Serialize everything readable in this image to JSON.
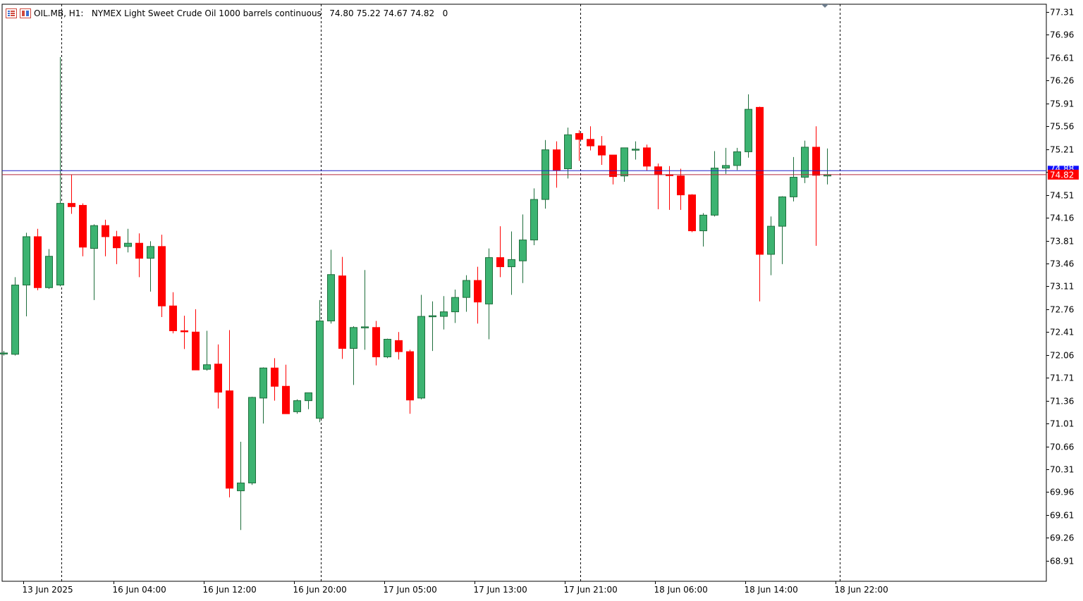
{
  "header": {
    "symbol": "OIL.MB",
    "timeframe": "H1:",
    "description": "NYMEX Light Sweet Crude Oil 1000 barrels continuous",
    "ohlc": "74.80 75.22 74.67 74.82",
    "volume": "0"
  },
  "colors": {
    "bull": "#3cb371",
    "bear": "#ff0000",
    "outline": "#1e6e3c",
    "bid_line": "#1e1ec8",
    "ask_line": "#b4283c",
    "price_label_bg": "#ff0000",
    "ask_label_bg": "#1010ff"
  },
  "price_label": "74.82",
  "ask_label": "74.88",
  "chart_data": {
    "type": "candlestick",
    "title": "",
    "ylim": [
      68.6,
      77.4
    ],
    "y_ticks": [
      "77.31",
      "76.96",
      "76.61",
      "76.26",
      "75.91",
      "75.56",
      "75.21",
      "74.86",
      "74.51",
      "74.16",
      "73.81",
      "73.46",
      "73.11",
      "72.76",
      "72.41",
      "72.06",
      "71.71",
      "71.36",
      "71.01",
      "70.66",
      "70.31",
      "69.96",
      "69.61",
      "69.26",
      "68.91"
    ],
    "x_labels": [
      {
        "index": 2,
        "label": "13 Jun 2025"
      },
      {
        "index": 10,
        "label": "16 Jun 04:00"
      },
      {
        "index": 18,
        "label": "16 Jun 12:00"
      },
      {
        "index": 26,
        "label": "16 Jun 20:00"
      },
      {
        "index": 34,
        "label": "17 Jun 05:00"
      },
      {
        "index": 42,
        "label": "17 Jun 13:00"
      },
      {
        "index": 50,
        "label": "17 Jun 21:00"
      },
      {
        "index": 58,
        "label": "18 Jun 06:00"
      },
      {
        "index": 66,
        "label": "18 Jun 14:00"
      },
      {
        "index": 74,
        "label": "18 Jun 22:00"
      }
    ],
    "day_separators": [
      5,
      28,
      51,
      74
    ],
    "bid": 74.82,
    "ask": 74.88,
    "candles": [
      {
        "o": 72.09,
        "h": 72.12,
        "l": 72.05,
        "c": 72.09
      },
      {
        "o": 72.07,
        "h": 73.25,
        "l": 72.05,
        "c": 73.13
      },
      {
        "o": 73.13,
        "h": 73.93,
        "l": 72.65,
        "c": 73.87
      },
      {
        "o": 73.87,
        "h": 73.99,
        "l": 73.05,
        "c": 73.09
      },
      {
        "o": 73.09,
        "h": 73.68,
        "l": 73.07,
        "c": 73.57
      },
      {
        "o": 73.13,
        "h": 76.62,
        "l": 73.11,
        "c": 74.38
      },
      {
        "o": 74.38,
        "h": 74.82,
        "l": 74.22,
        "c": 74.33
      },
      {
        "o": 74.35,
        "h": 74.38,
        "l": 73.57,
        "c": 73.71
      },
      {
        "o": 73.69,
        "h": 74.06,
        "l": 72.9,
        "c": 74.04
      },
      {
        "o": 74.04,
        "h": 74.13,
        "l": 73.57,
        "c": 73.87
      },
      {
        "o": 73.87,
        "h": 73.96,
        "l": 73.45,
        "c": 73.7
      },
      {
        "o": 73.72,
        "h": 73.99,
        "l": 73.63,
        "c": 73.77
      },
      {
        "o": 73.77,
        "h": 73.92,
        "l": 73.25,
        "c": 73.54
      },
      {
        "o": 73.54,
        "h": 73.8,
        "l": 73.03,
        "c": 73.72
      },
      {
        "o": 73.72,
        "h": 73.9,
        "l": 72.64,
        "c": 72.81
      },
      {
        "o": 72.81,
        "h": 73.02,
        "l": 72.39,
        "c": 72.43
      },
      {
        "o": 72.43,
        "h": 72.66,
        "l": 72.15,
        "c": 72.42
      },
      {
        "o": 72.41,
        "h": 72.76,
        "l": 71.84,
        "c": 71.83
      },
      {
        "o": 71.84,
        "h": 72.43,
        "l": 71.82,
        "c": 71.91
      },
      {
        "o": 71.92,
        "h": 72.22,
        "l": 71.24,
        "c": 71.49
      },
      {
        "o": 71.51,
        "h": 72.44,
        "l": 69.88,
        "c": 70.02
      },
      {
        "o": 69.98,
        "h": 70.73,
        "l": 69.38,
        "c": 70.1
      },
      {
        "o": 70.1,
        "h": 71.42,
        "l": 70.07,
        "c": 71.41
      },
      {
        "o": 71.4,
        "h": 71.87,
        "l": 71.01,
        "c": 71.86
      },
      {
        "o": 71.86,
        "h": 72.01,
        "l": 71.36,
        "c": 71.58
      },
      {
        "o": 71.58,
        "h": 71.91,
        "l": 71.16,
        "c": 71.16
      },
      {
        "o": 71.19,
        "h": 71.38,
        "l": 71.16,
        "c": 71.36
      },
      {
        "o": 71.36,
        "h": 71.48,
        "l": 71.23,
        "c": 71.48
      },
      {
        "o": 71.09,
        "h": 72.9,
        "l": 71.03,
        "c": 72.58
      },
      {
        "o": 72.58,
        "h": 73.67,
        "l": 72.54,
        "c": 73.29
      },
      {
        "o": 73.27,
        "h": 73.56,
        "l": 72.0,
        "c": 72.16
      },
      {
        "o": 72.16,
        "h": 72.5,
        "l": 71.6,
        "c": 72.48
      },
      {
        "o": 72.48,
        "h": 73.36,
        "l": 72.14,
        "c": 72.49
      },
      {
        "o": 72.48,
        "h": 72.58,
        "l": 71.9,
        "c": 72.03
      },
      {
        "o": 72.03,
        "h": 72.31,
        "l": 72.01,
        "c": 72.3
      },
      {
        "o": 72.28,
        "h": 72.41,
        "l": 71.99,
        "c": 72.11
      },
      {
        "o": 72.11,
        "h": 72.14,
        "l": 71.16,
        "c": 71.37
      },
      {
        "o": 71.4,
        "h": 72.98,
        "l": 71.38,
        "c": 72.65
      },
      {
        "o": 72.66,
        "h": 72.88,
        "l": 72.12,
        "c": 72.66
      },
      {
        "o": 72.65,
        "h": 72.96,
        "l": 72.45,
        "c": 72.72
      },
      {
        "o": 72.72,
        "h": 73.06,
        "l": 72.55,
        "c": 72.94
      },
      {
        "o": 72.94,
        "h": 73.28,
        "l": 72.72,
        "c": 73.2
      },
      {
        "o": 73.2,
        "h": 73.41,
        "l": 72.54,
        "c": 72.87
      },
      {
        "o": 72.84,
        "h": 73.69,
        "l": 72.3,
        "c": 73.55
      },
      {
        "o": 73.55,
        "h": 74.03,
        "l": 73.25,
        "c": 73.41
      },
      {
        "o": 73.41,
        "h": 73.95,
        "l": 72.98,
        "c": 73.52
      },
      {
        "o": 73.5,
        "h": 74.21,
        "l": 73.16,
        "c": 73.82
      },
      {
        "o": 73.82,
        "h": 74.61,
        "l": 73.74,
        "c": 74.44
      },
      {
        "o": 74.44,
        "h": 75.35,
        "l": 74.3,
        "c": 75.2
      },
      {
        "o": 75.2,
        "h": 75.33,
        "l": 74.62,
        "c": 74.89
      },
      {
        "o": 74.91,
        "h": 75.54,
        "l": 74.76,
        "c": 75.43
      },
      {
        "o": 75.45,
        "h": 75.5,
        "l": 75.03,
        "c": 75.36
      },
      {
        "o": 75.36,
        "h": 75.56,
        "l": 75.19,
        "c": 75.26
      },
      {
        "o": 75.26,
        "h": 75.41,
        "l": 74.97,
        "c": 75.12
      },
      {
        "o": 75.12,
        "h": 75.1,
        "l": 74.67,
        "c": 74.79
      },
      {
        "o": 74.8,
        "h": 75.22,
        "l": 74.71,
        "c": 75.23
      },
      {
        "o": 75.21,
        "h": 75.33,
        "l": 75.05,
        "c": 75.21
      },
      {
        "o": 75.23,
        "h": 75.28,
        "l": 74.88,
        "c": 74.95
      },
      {
        "o": 74.94,
        "h": 74.99,
        "l": 74.29,
        "c": 74.82
      },
      {
        "o": 74.82,
        "h": 74.95,
        "l": 74.28,
        "c": 74.81
      },
      {
        "o": 74.8,
        "h": 74.91,
        "l": 74.28,
        "c": 74.51
      },
      {
        "o": 74.51,
        "h": 74.52,
        "l": 73.94,
        "c": 73.96
      },
      {
        "o": 73.96,
        "h": 74.23,
        "l": 73.72,
        "c": 74.2
      },
      {
        "o": 74.2,
        "h": 75.18,
        "l": 74.18,
        "c": 74.92
      },
      {
        "o": 74.92,
        "h": 75.23,
        "l": 74.83,
        "c": 74.96
      },
      {
        "o": 74.96,
        "h": 75.23,
        "l": 74.89,
        "c": 75.17
      },
      {
        "o": 75.17,
        "h": 76.05,
        "l": 75.08,
        "c": 75.82
      },
      {
        "o": 75.85,
        "h": 75.86,
        "l": 72.88,
        "c": 73.6
      },
      {
        "o": 73.6,
        "h": 74.18,
        "l": 73.28,
        "c": 74.03
      },
      {
        "o": 74.03,
        "h": 74.49,
        "l": 73.45,
        "c": 74.48
      },
      {
        "o": 74.48,
        "h": 75.09,
        "l": 74.41,
        "c": 74.78
      },
      {
        "o": 74.78,
        "h": 75.34,
        "l": 74.69,
        "c": 75.24
      },
      {
        "o": 75.24,
        "h": 75.56,
        "l": 73.73,
        "c": 74.81
      },
      {
        "o": 74.8,
        "h": 75.22,
        "l": 74.67,
        "c": 74.82
      }
    ]
  }
}
